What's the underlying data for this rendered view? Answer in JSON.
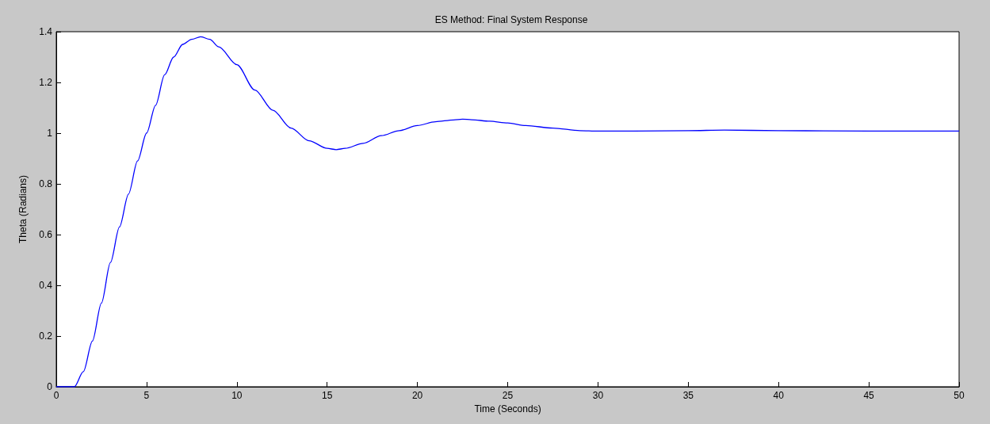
{
  "chart_data": {
    "type": "line",
    "title": "ES Method: Final System Response",
    "xlabel": "Time (Seconds)",
    "ylabel": "Theta (Radians)",
    "x": [
      0,
      0.5,
      1,
      1.5,
      2,
      2.5,
      3,
      3.5,
      4,
      4.5,
      5,
      5.5,
      6,
      6.5,
      7,
      7.5,
      8,
      8.5,
      9,
      10,
      11,
      12,
      13,
      14,
      15,
      15.5,
      16,
      17,
      18,
      19,
      20,
      21,
      22,
      22.5,
      23,
      24,
      25,
      26,
      27.5,
      29,
      30,
      32,
      35,
      37,
      40,
      45,
      50
    ],
    "series": [
      {
        "color": "#0000ff",
        "values": [
          0,
          0,
          0,
          0.06,
          0.18,
          0.33,
          0.49,
          0.63,
          0.76,
          0.89,
          1.0,
          1.11,
          1.23,
          1.3,
          1.35,
          1.37,
          1.38,
          1.37,
          1.34,
          1.27,
          1.17,
          1.09,
          1.02,
          0.97,
          0.94,
          0.935,
          0.94,
          0.96,
          0.99,
          1.01,
          1.03,
          1.045,
          1.052,
          1.055,
          1.053,
          1.047,
          1.04,
          1.03,
          1.02,
          1.01,
          1.008,
          1.008,
          1.01,
          1.012,
          1.01,
          1.008,
          1.008
        ]
      }
    ],
    "xlim": [
      0,
      50
    ],
    "xticks": [
      0,
      5,
      10,
      15,
      20,
      25,
      30,
      35,
      40,
      45,
      50
    ],
    "ylim": [
      0,
      1.4
    ],
    "yticks": [
      0,
      0.2,
      0.4,
      0.6,
      0.8,
      1,
      1.2,
      1.4
    ],
    "grid": false,
    "marker": "none",
    "line_style": "solid"
  }
}
